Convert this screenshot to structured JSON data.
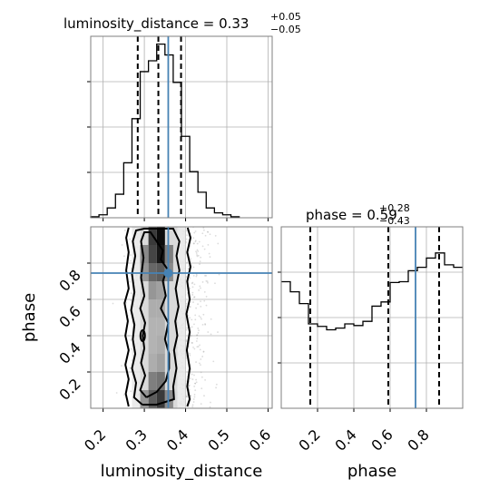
{
  "chart_data": [
    {
      "type": "histogram",
      "panel": "luminosity_distance-marginal",
      "title": {
        "param": "luminosity_distance",
        "median": "0.33",
        "plus": "+0.05",
        "minus": "−0.05"
      },
      "bins": [
        {
          "x0": 0.17,
          "x1": 0.19,
          "v": 1
        },
        {
          "x0": 0.19,
          "x1": 0.21,
          "v": 3
        },
        {
          "x0": 0.21,
          "x1": 0.23,
          "v": 10
        },
        {
          "x0": 0.23,
          "x1": 0.25,
          "v": 24
        },
        {
          "x0": 0.25,
          "x1": 0.27,
          "v": 56
        },
        {
          "x0": 0.27,
          "x1": 0.29,
          "v": 101
        },
        {
          "x0": 0.29,
          "x1": 0.31,
          "v": 149
        },
        {
          "x0": 0.31,
          "x1": 0.33,
          "v": 160
        },
        {
          "x0": 0.33,
          "x1": 0.35,
          "v": 177
        },
        {
          "x0": 0.35,
          "x1": 0.37,
          "v": 166
        },
        {
          "x0": 0.37,
          "x1": 0.39,
          "v": 138
        },
        {
          "x0": 0.39,
          "x1": 0.41,
          "v": 83
        },
        {
          "x0": 0.41,
          "x1": 0.43,
          "v": 47
        },
        {
          "x0": 0.43,
          "x1": 0.45,
          "v": 26
        },
        {
          "x0": 0.45,
          "x1": 0.47,
          "v": 10
        },
        {
          "x0": 0.47,
          "x1": 0.49,
          "v": 5
        },
        {
          "x0": 0.49,
          "x1": 0.51,
          "v": 3
        },
        {
          "x0": 0.51,
          "x1": 0.53,
          "v": 1
        }
      ],
      "ymax": 185,
      "xlim": [
        0.17,
        0.61
      ],
      "quantiles": [
        0.284,
        0.334,
        0.389
      ],
      "truth": 0.358
    },
    {
      "type": "histogram",
      "panel": "phase-marginal",
      "title": {
        "param": "phase",
        "median": "0.59",
        "plus": "+0.28",
        "minus": "−0.43"
      },
      "bins": [
        {
          "x0": 0.0,
          "x1": 0.05,
          "v": 150
        },
        {
          "x0": 0.05,
          "x1": 0.1,
          "v": 138
        },
        {
          "x0": 0.1,
          "x1": 0.15,
          "v": 124
        },
        {
          "x0": 0.15,
          "x1": 0.2,
          "v": 100
        },
        {
          "x0": 0.2,
          "x1": 0.25,
          "v": 97
        },
        {
          "x0": 0.25,
          "x1": 0.3,
          "v": 93
        },
        {
          "x0": 0.3,
          "x1": 0.35,
          "v": 95
        },
        {
          "x0": 0.35,
          "x1": 0.4,
          "v": 100
        },
        {
          "x0": 0.4,
          "x1": 0.45,
          "v": 98
        },
        {
          "x0": 0.45,
          "x1": 0.5,
          "v": 103
        },
        {
          "x0": 0.5,
          "x1": 0.55,
          "v": 121
        },
        {
          "x0": 0.55,
          "x1": 0.6,
          "v": 126
        },
        {
          "x0": 0.6,
          "x1": 0.65,
          "v": 149
        },
        {
          "x0": 0.65,
          "x1": 0.7,
          "v": 150
        },
        {
          "x0": 0.7,
          "x1": 0.75,
          "v": 163
        },
        {
          "x0": 0.75,
          "x1": 0.8,
          "v": 167
        },
        {
          "x0": 0.8,
          "x1": 0.85,
          "v": 178
        },
        {
          "x0": 0.85,
          "x1": 0.9,
          "v": 184
        },
        {
          "x0": 0.9,
          "x1": 0.95,
          "v": 170
        },
        {
          "x0": 0.95,
          "x1": 1.0,
          "v": 167
        }
      ],
      "ymax": 215,
      "xlim": [
        0.0,
        1.0
      ],
      "quantiles": [
        0.16,
        0.59,
        0.87
      ],
      "truth": 0.74
    },
    {
      "type": "scatter-density",
      "panel": "luminosity_distance-phase-joint",
      "xlim": [
        0.17,
        0.61
      ],
      "ylim": [
        0.0,
        1.0
      ],
      "truth": {
        "x": 0.358,
        "y": 0.745
      },
      "contours": [
        {
          "level": "inner",
          "left": [
            [
              0.305,
              0.06
            ],
            [
              0.29,
              0.1
            ],
            [
              0.302,
              0.18
            ],
            [
              0.292,
              0.25
            ],
            [
              0.3,
              0.33
            ],
            [
              0.296,
              0.4
            ],
            [
              0.302,
              0.47
            ],
            [
              0.29,
              0.55
            ],
            [
              0.3,
              0.62
            ],
            [
              0.292,
              0.72
            ],
            [
              0.298,
              0.83
            ],
            [
              0.292,
              0.92
            ],
            [
              0.3,
              0.97
            ]
          ],
          "right": [
            [
              0.315,
              0.97
            ],
            [
              0.33,
              0.92
            ],
            [
              0.345,
              0.87
            ],
            [
              0.34,
              0.82
            ],
            [
              0.355,
              0.77
            ],
            [
              0.345,
              0.7
            ],
            [
              0.352,
              0.62
            ],
            [
              0.34,
              0.55
            ],
            [
              0.358,
              0.47
            ],
            [
              0.35,
              0.38
            ],
            [
              0.36,
              0.3
            ],
            [
              0.36,
              0.22
            ],
            [
              0.352,
              0.15
            ],
            [
              0.33,
              0.09
            ],
            [
              0.305,
              0.06
            ]
          ]
        },
        {
          "level": "middle",
          "left": [
            [
              0.295,
              0.02
            ],
            [
              0.275,
              0.06
            ],
            [
              0.28,
              0.14
            ],
            [
              0.27,
              0.22
            ],
            [
              0.278,
              0.3
            ],
            [
              0.272,
              0.38
            ],
            [
              0.276,
              0.46
            ],
            [
              0.268,
              0.54
            ],
            [
              0.276,
              0.64
            ],
            [
              0.27,
              0.74
            ],
            [
              0.278,
              0.84
            ],
            [
              0.272,
              0.92
            ],
            [
              0.28,
              0.98
            ]
          ],
          "right": [
            [
              0.3,
              0.99
            ],
            [
              0.37,
              0.99
            ],
            [
              0.385,
              0.92
            ],
            [
              0.378,
              0.84
            ],
            [
              0.385,
              0.76
            ],
            [
              0.376,
              0.66
            ],
            [
              0.383,
              0.56
            ],
            [
              0.375,
              0.48
            ],
            [
              0.38,
              0.4
            ],
            [
              0.372,
              0.32
            ],
            [
              0.378,
              0.22
            ],
            [
              0.37,
              0.12
            ],
            [
              0.372,
              0.05
            ],
            [
              0.33,
              0.02
            ],
            [
              0.295,
              0.02
            ]
          ]
        },
        {
          "level": "outer",
          "left": [
            [
              0.262,
              0.01
            ],
            [
              0.255,
              0.08
            ],
            [
              0.262,
              0.16
            ],
            [
              0.254,
              0.24
            ],
            [
              0.262,
              0.32
            ],
            [
              0.254,
              0.4
            ],
            [
              0.26,
              0.48
            ],
            [
              0.252,
              0.58
            ],
            [
              0.262,
              0.66
            ],
            [
              0.256,
              0.76
            ],
            [
              0.262,
              0.86
            ],
            [
              0.256,
              0.94
            ],
            [
              0.262,
              0.995
            ]
          ],
          "right": [
            [
              0.405,
              0.995
            ],
            [
              0.412,
              0.94
            ],
            [
              0.404,
              0.86
            ],
            [
              0.412,
              0.78
            ],
            [
              0.404,
              0.7
            ],
            [
              0.41,
              0.6
            ],
            [
              0.402,
              0.52
            ],
            [
              0.41,
              0.42
            ],
            [
              0.403,
              0.32
            ],
            [
              0.41,
              0.22
            ],
            [
              0.404,
              0.12
            ],
            [
              0.41,
              0.05
            ],
            [
              0.404,
              0.01
            ]
          ]
        }
      ],
      "density_cells": [
        {
          "x": 0.34,
          "y": 0.95,
          "d": 0.95
        },
        {
          "x": 0.32,
          "y": 0.95,
          "d": 0.75
        },
        {
          "x": 0.34,
          "y": 0.85,
          "d": 0.9
        },
        {
          "x": 0.32,
          "y": 0.85,
          "d": 0.7
        },
        {
          "x": 0.36,
          "y": 0.85,
          "d": 0.45
        },
        {
          "x": 0.3,
          "y": 0.85,
          "d": 0.4
        },
        {
          "x": 0.34,
          "y": 0.75,
          "d": 0.6
        },
        {
          "x": 0.32,
          "y": 0.75,
          "d": 0.55
        },
        {
          "x": 0.3,
          "y": 0.75,
          "d": 0.35
        },
        {
          "x": 0.36,
          "y": 0.75,
          "d": 0.4
        },
        {
          "x": 0.32,
          "y": 0.65,
          "d": 0.35
        },
        {
          "x": 0.34,
          "y": 0.65,
          "d": 0.3
        },
        {
          "x": 0.32,
          "y": 0.55,
          "d": 0.25
        },
        {
          "x": 0.34,
          "y": 0.55,
          "d": 0.25
        },
        {
          "x": 0.32,
          "y": 0.45,
          "d": 0.22
        },
        {
          "x": 0.34,
          "y": 0.45,
          "d": 0.22
        },
        {
          "x": 0.32,
          "y": 0.35,
          "d": 0.22
        },
        {
          "x": 0.34,
          "y": 0.35,
          "d": 0.25
        },
        {
          "x": 0.32,
          "y": 0.25,
          "d": 0.25
        },
        {
          "x": 0.34,
          "y": 0.25,
          "d": 0.3
        },
        {
          "x": 0.32,
          "y": 0.15,
          "d": 0.45
        },
        {
          "x": 0.34,
          "y": 0.15,
          "d": 0.5
        },
        {
          "x": 0.34,
          "y": 0.05,
          "d": 0.75
        },
        {
          "x": 0.32,
          "y": 0.05,
          "d": 0.6
        },
        {
          "x": 0.3,
          "y": 0.05,
          "d": 0.35
        },
        {
          "x": 0.36,
          "y": 0.05,
          "d": 0.4
        }
      ]
    }
  ],
  "axes": {
    "xlabel_left": "luminosity_distance",
    "xlabel_right": "phase",
    "ylabel_left": "phase",
    "dist_ticks": [
      {
        "v": 0.2,
        "label": "0.2"
      },
      {
        "v": 0.3,
        "label": "0.3"
      },
      {
        "v": 0.4,
        "label": "0.4"
      },
      {
        "v": 0.5,
        "label": "0.5"
      },
      {
        "v": 0.6,
        "label": "0.6"
      }
    ],
    "phase_ticks": [
      {
        "v": 0.2,
        "label": "0.2"
      },
      {
        "v": 0.4,
        "label": "0.4"
      },
      {
        "v": 0.6,
        "label": "0.6"
      },
      {
        "v": 0.8,
        "label": "0.8"
      }
    ]
  },
  "colors": {
    "truth": "#4682b4",
    "contour": "#000000",
    "scatter": "#9a9a9a",
    "grid": "#b0b0b0"
  }
}
